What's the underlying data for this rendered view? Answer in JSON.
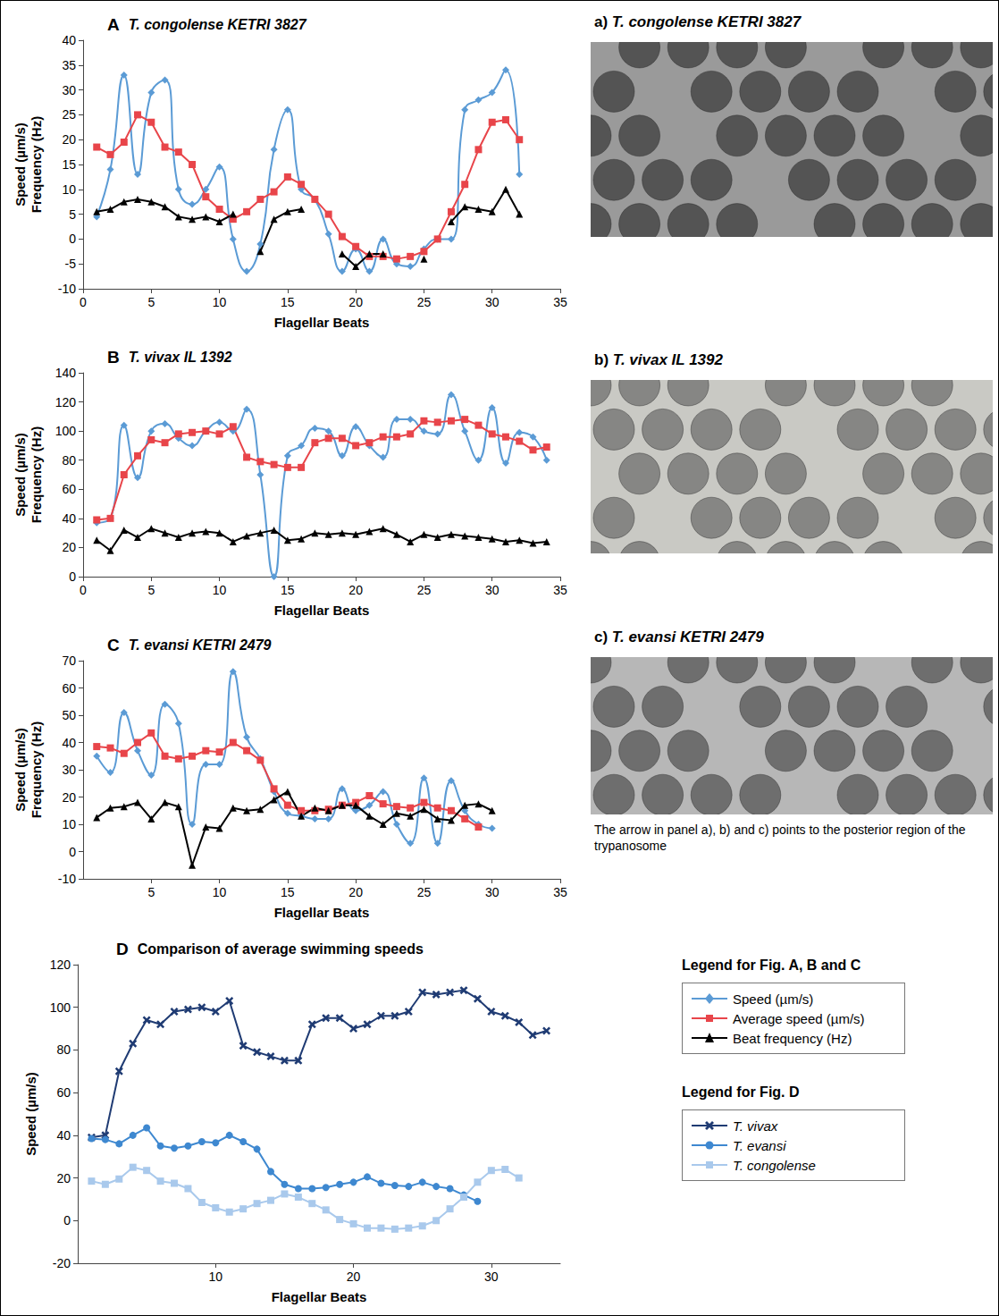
{
  "chart_data": [
    {
      "type": "line",
      "panel": "A",
      "title": "T. congolense KETRI 3827",
      "xlabel": "Flagellar Beats",
      "ylabel": "Speed (µm/s) Frequency (Hz)",
      "x": [
        1,
        2,
        3,
        4,
        5,
        6,
        7,
        8,
        9,
        10,
        11,
        12,
        13,
        14,
        15,
        16,
        17,
        18,
        19,
        20,
        21,
        22,
        23,
        24,
        25,
        26,
        27,
        28,
        29,
        30,
        31,
        32
      ],
      "xlim": [
        0,
        35
      ],
      "xticks": [
        0,
        5,
        10,
        15,
        20,
        25,
        30,
        35
      ],
      "ylim": [
        -10,
        40
      ],
      "yticks": [
        -10,
        -5,
        0,
        5,
        10,
        15,
        20,
        25,
        30,
        35,
        40
      ],
      "grid": false,
      "series": [
        {
          "name": "Speed (µm/s)",
          "color": "#5b9bd5",
          "marker": "diamond",
          "line_style": "smooth",
          "values": [
            4.5,
            14,
            33,
            13,
            29.5,
            32,
            10,
            7,
            10,
            14.5,
            0,
            -6.5,
            -1,
            18,
            26,
            10,
            8,
            1,
            -6.5,
            -2,
            -6.5,
            0,
            -5,
            -5.5,
            -2,
            0,
            0,
            26,
            28,
            29.5,
            34,
            13
          ]
        },
        {
          "name": "Average speed (µm/s)",
          "color": "#e8454a",
          "marker": "square",
          "line_style": "solid",
          "values": [
            18.5,
            17,
            19.5,
            25,
            23.5,
            18.5,
            17.5,
            15,
            8.5,
            6,
            4,
            5.5,
            8,
            9.5,
            12.5,
            11,
            8,
            5,
            0.5,
            -1.5,
            -3.5,
            -3.5,
            -4,
            -3.5,
            -2.5,
            0,
            5.5,
            11,
            18,
            23.5,
            24,
            20
          ]
        },
        {
          "name": "Beat frequency (Hz)",
          "color": "#000000",
          "marker": "triangle",
          "line_style": "solid",
          "values": [
            5.5,
            6,
            7.5,
            8,
            7.5,
            6.5,
            4.5,
            4,
            4.5,
            3.5,
            5,
            null,
            -2.5,
            4,
            5.5,
            6,
            null,
            null,
            -3,
            -5.5,
            -3,
            -3,
            null,
            null,
            -4,
            null,
            3.5,
            6.5,
            6,
            5.5,
            10,
            5
          ]
        }
      ]
    },
    {
      "type": "line",
      "panel": "B",
      "title": "T. vivax IL 1392",
      "xlabel": "Flagellar Beats",
      "ylabel": "Speed (µm/s) Frequency (Hz)",
      "x": [
        1,
        2,
        3,
        4,
        5,
        6,
        7,
        8,
        9,
        10,
        11,
        12,
        13,
        14,
        15,
        16,
        17,
        18,
        19,
        20,
        21,
        22,
        23,
        24,
        25,
        26,
        27,
        28,
        29,
        30,
        31,
        32,
        33,
        34
      ],
      "xlim": [
        0,
        35
      ],
      "xticks": [
        0,
        5,
        10,
        15,
        20,
        25,
        30,
        35
      ],
      "ylim": [
        0,
        140
      ],
      "yticks": [
        0,
        20,
        40,
        60,
        80,
        100,
        120,
        140
      ],
      "grid": false,
      "series": [
        {
          "name": "Speed (µm/s)",
          "color": "#5b9bd5",
          "marker": "diamond",
          "line_style": "smooth",
          "values": [
            37,
            40,
            104,
            68,
            100,
            105,
            95,
            90,
            100,
            106,
            100,
            115,
            70,
            0,
            83,
            90,
            102,
            100,
            83,
            103,
            90,
            82,
            108,
            108,
            100,
            98,
            125,
            100,
            80,
            116,
            78,
            99,
            96,
            80
          ]
        },
        {
          "name": "Average speed (µm/s)",
          "color": "#e8454a",
          "marker": "square",
          "line_style": "solid",
          "values": [
            39,
            40,
            70,
            83,
            94,
            92,
            98,
            99,
            100,
            98,
            103,
            82,
            79,
            77,
            75,
            75,
            92,
            95,
            95,
            90,
            92,
            96,
            96,
            98,
            107,
            106,
            107,
            108,
            104,
            98,
            96,
            93,
            87,
            89
          ]
        },
        {
          "name": "Beat frequency (Hz)",
          "color": "#000000",
          "marker": "triangle",
          "line_style": "solid",
          "values": [
            25,
            18,
            32,
            27,
            33,
            30,
            27,
            30,
            31,
            30,
            24,
            28,
            30,
            32,
            25,
            26,
            30,
            29,
            30,
            29,
            31,
            33,
            29,
            24,
            29,
            27,
            29,
            28,
            27,
            26,
            24,
            25,
            23,
            24
          ]
        }
      ]
    },
    {
      "type": "line",
      "panel": "C",
      "title": "T. evansi KETRI 2479",
      "xlabel": "Flagellar Beats",
      "ylabel": "Speed (µm/s) Frequency (Hz)",
      "x": [
        1,
        2,
        3,
        4,
        5,
        6,
        7,
        8,
        9,
        10,
        11,
        12,
        13,
        14,
        15,
        16,
        17,
        18,
        19,
        20,
        21,
        22,
        23,
        24,
        25,
        26,
        27,
        28,
        29,
        30
      ],
      "xlim": [
        0,
        35
      ],
      "xticks": [
        5,
        10,
        15,
        20,
        25,
        30,
        35
      ],
      "ylim": [
        -10,
        70
      ],
      "yticks": [
        -10,
        0,
        10,
        20,
        30,
        40,
        50,
        60,
        70
      ],
      "grid": false,
      "series": [
        {
          "name": "Speed (µm/s)",
          "color": "#5b9bd5",
          "marker": "diamond",
          "line_style": "smooth",
          "values": [
            35,
            29,
            51,
            37,
            28,
            54,
            47,
            10,
            32,
            32,
            66,
            42,
            34,
            22,
            14,
            13,
            12,
            12,
            23,
            15,
            17,
            22,
            10,
            3,
            27,
            3,
            26,
            15,
            10,
            8.5
          ]
        },
        {
          "name": "Average speed (µm/s)",
          "color": "#e8454a",
          "marker": "square",
          "line_style": "solid",
          "values": [
            38.5,
            38,
            36,
            40,
            43.5,
            35,
            34,
            35,
            37,
            36.5,
            40,
            37,
            33.5,
            23,
            17,
            15,
            15,
            15.5,
            17,
            18,
            20.5,
            17.5,
            16.5,
            16,
            18,
            16,
            15,
            12,
            9,
            null
          ]
        },
        {
          "name": "Beat frequency (Hz)",
          "color": "#000000",
          "marker": "triangle",
          "line_style": "solid",
          "values": [
            12.5,
            16,
            16.5,
            18,
            12,
            18,
            16.5,
            -5,
            9,
            8.5,
            16,
            15,
            15.5,
            19,
            22,
            13,
            16,
            15,
            17,
            17,
            13,
            10,
            14,
            13,
            15.5,
            12,
            11.5,
            17,
            17.5,
            15
          ]
        }
      ]
    },
    {
      "type": "line",
      "panel": "D",
      "title": "Comparison of average swimming speeds",
      "xlabel": "Flagellar Beats",
      "ylabel": "Speed (µm/s)",
      "x": [
        1,
        2,
        3,
        4,
        5,
        6,
        7,
        8,
        9,
        10,
        11,
        12,
        13,
        14,
        15,
        16,
        17,
        18,
        19,
        20,
        21,
        22,
        23,
        24,
        25,
        26,
        27,
        28,
        29,
        30,
        31,
        32,
        33,
        34
      ],
      "xlim": [
        0,
        35
      ],
      "xticks": [
        10,
        20,
        30
      ],
      "ylim": [
        -20,
        120
      ],
      "yticks": [
        -20,
        0,
        20,
        40,
        60,
        80,
        100,
        120
      ],
      "grid": false,
      "series": [
        {
          "name": "T. vivax",
          "color": "#1f3b73",
          "marker": "x",
          "line_style": "solid",
          "values": [
            39,
            40,
            70,
            83,
            94,
            92,
            98,
            99,
            100,
            98,
            103,
            82,
            79,
            77,
            75,
            75,
            92,
            95,
            95,
            90,
            92,
            96,
            96,
            98,
            107,
            106,
            107,
            108,
            104,
            98,
            96,
            93,
            87,
            89
          ]
        },
        {
          "name": "T. evansi",
          "color": "#3e88d0",
          "marker": "circle",
          "line_style": "solid",
          "values": [
            38.5,
            38,
            36,
            40,
            43.5,
            35,
            34,
            35,
            37,
            36.5,
            40,
            37,
            33.5,
            23,
            17,
            15,
            15,
            15.5,
            17,
            18,
            20.5,
            17.5,
            16.5,
            16,
            18,
            16,
            15,
            12,
            9,
            null,
            null,
            null,
            null,
            null
          ]
        },
        {
          "name": "T. congolense",
          "color": "#a9c9ec",
          "marker": "square",
          "line_style": "solid",
          "values": [
            18.5,
            17,
            19.5,
            25,
            23.5,
            18.5,
            17.5,
            15,
            8.5,
            6,
            4,
            5.5,
            8,
            9.5,
            12.5,
            11,
            8,
            5,
            0.5,
            -1.5,
            -3.5,
            -3.5,
            -4,
            -3.5,
            -2.5,
            0,
            5.5,
            11,
            18,
            23.5,
            24,
            20,
            null,
            null
          ]
        }
      ]
    }
  ],
  "images": [
    {
      "label": "a)",
      "title": "T. congolense KETRI 3827"
    },
    {
      "label": "b)",
      "title": "T. vivax IL 1392"
    },
    {
      "label": "c)",
      "title": "T. evansi KETRI 2479"
    }
  ],
  "caption": "The arrow in panel a), b) and c) points to the posterior region of the trypanosome",
  "legend_boxes": [
    {
      "title": "Legend for Fig. A, B and C"
    },
    {
      "title": "Legend for Fig. D"
    }
  ]
}
